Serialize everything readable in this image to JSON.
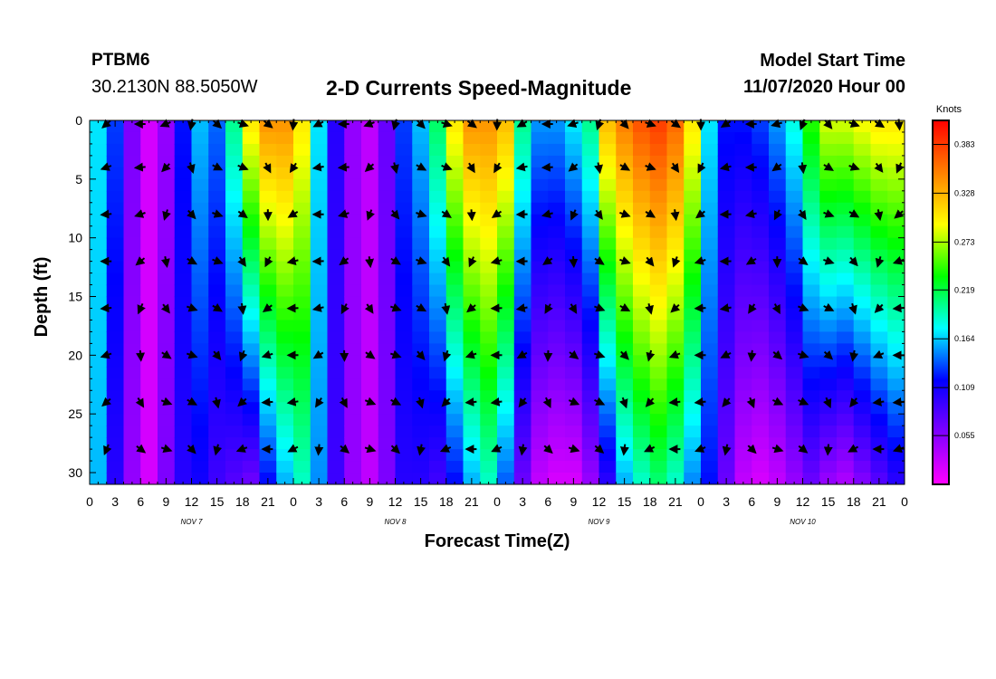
{
  "header": {
    "station": "PTBM6",
    "coordinates": "30.2130N 88.5050W",
    "title": "2-D Currents Speed-Magnitude",
    "model_start_label": "Model Start Time",
    "model_start_value": "11/07/2020 Hour 00"
  },
  "chart_data": {
    "type": "heatmap",
    "title": "2-D Currents Speed-Magnitude",
    "xlabel": "Forecast Time(Z)",
    "ylabel": "Depth (ft)",
    "x_tick_labels": [
      "0",
      "3",
      "6",
      "9",
      "12",
      "15",
      "18",
      "21",
      "0",
      "3",
      "6",
      "9",
      "12",
      "15",
      "18",
      "21",
      "0",
      "3",
      "6",
      "9",
      "12",
      "15",
      "18",
      "21",
      "0",
      "3",
      "6",
      "9",
      "12",
      "15",
      "18",
      "21",
      "0"
    ],
    "day_labels": [
      "NOV  7",
      "NOV  8",
      "NOV  9",
      "NOV  10"
    ],
    "x_range_hours": [
      0,
      96
    ],
    "y_range_ft": [
      0,
      31
    ],
    "y_ticks": [
      0,
      5,
      10,
      15,
      20,
      25,
      30
    ],
    "y_tick_labels": [
      "0",
      "5",
      "10",
      "15",
      "20",
      "25",
      "30"
    ],
    "colorbar": {
      "unit": "Knots",
      "tick_values": [
        0.383,
        0.328,
        0.273,
        0.219,
        0.164,
        0.109,
        0.055
      ],
      "tick_labels": [
        "0.383",
        "0.328",
        "0.273",
        "0.219",
        "0.164",
        "0.109",
        "0.055"
      ],
      "range": [
        0.0,
        0.41
      ],
      "colors": [
        "#ff00ff",
        "#8000ff",
        "#0000ff",
        "#00ffff",
        "#00ff00",
        "#ffff00",
        "#ff8000",
        "#ff0000"
      ]
    },
    "speed_at_surface_knots": [
      0.17,
      0.13,
      0.06,
      0.02,
      0.05,
      0.12,
      0.16,
      0.14,
      0.2,
      0.3,
      0.34,
      0.34,
      0.3,
      0.17,
      0.1,
      0.05,
      0.03,
      0.07,
      0.13,
      0.16,
      0.21,
      0.3,
      0.34,
      0.34,
      0.32,
      0.2,
      0.15,
      0.15,
      0.17,
      0.2,
      0.32,
      0.35,
      0.37,
      0.38,
      0.36,
      0.3,
      0.17,
      0.12,
      0.12,
      0.13,
      0.15,
      0.18,
      0.24,
      0.28,
      0.28,
      0.29,
      0.3,
      0.3
    ],
    "speed_at_bottom_knots": [
      0.16,
      0.1,
      0.05,
      0.02,
      0.06,
      0.1,
      0.11,
      0.09,
      0.08,
      0.07,
      0.12,
      0.16,
      0.19,
      0.15,
      0.09,
      0.05,
      0.03,
      0.06,
      0.1,
      0.1,
      0.09,
      0.12,
      0.16,
      0.19,
      0.14,
      0.07,
      0.03,
      0.02,
      0.02,
      0.05,
      0.1,
      0.16,
      0.19,
      0.21,
      0.19,
      0.15,
      0.12,
      0.07,
      0.03,
      0.02,
      0.03,
      0.05,
      0.07,
      0.05,
      0.04,
      0.06,
      0.08,
      0.1
    ],
    "vector_depths_ft": [
      0,
      4,
      8,
      12,
      16,
      20,
      24,
      28
    ],
    "vector_times_hours": [
      2,
      6,
      9,
      12,
      15,
      18,
      21,
      24,
      27,
      30,
      33,
      36,
      39,
      42,
      45,
      48,
      51,
      54,
      57,
      60,
      63,
      66,
      69,
      72,
      75,
      78,
      81,
      84,
      87,
      90,
      93,
      96
    ]
  }
}
